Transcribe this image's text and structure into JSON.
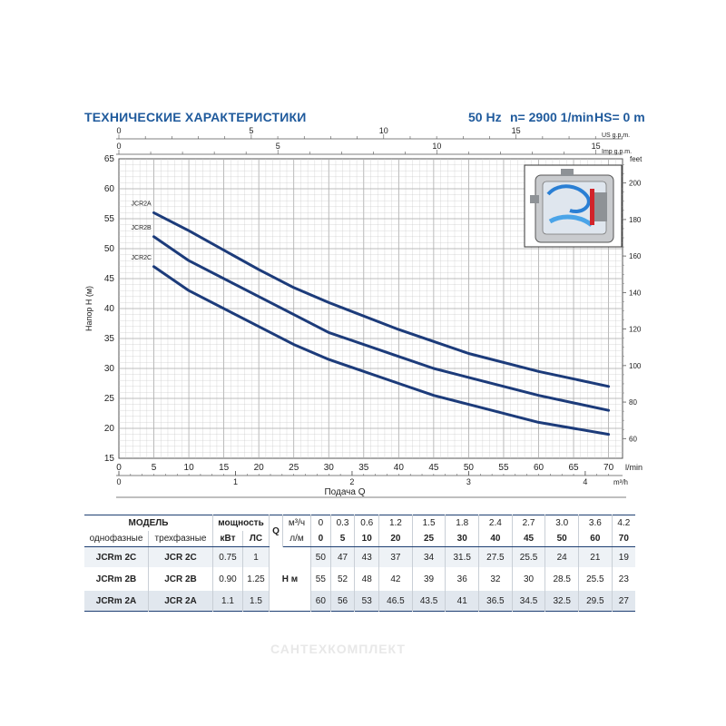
{
  "header": {
    "title": "ТЕХНИЧЕСКИЕ ХАРАКТЕРИСТИКИ",
    "freq": "50 Hz",
    "speed": "n= 2900  1/min",
    "hs": "HS= 0 m"
  },
  "chart_data": {
    "type": "line",
    "x": [
      0,
      5,
      10,
      20,
      25,
      30,
      40,
      45,
      50,
      60,
      70
    ],
    "x_unit": "l/min",
    "xlim": [
      0,
      72
    ],
    "ylim": [
      15,
      65
    ],
    "ylabel": "Напор H (м)",
    "xlabel": "Подача Q",
    "right_axis_label": "feet",
    "grid": true,
    "series": [
      {
        "name": "JCR2A",
        "points": [
          [
            5,
            56
          ],
          [
            10,
            53
          ],
          [
            20,
            46.5
          ],
          [
            25,
            43.5
          ],
          [
            30,
            41
          ],
          [
            40,
            36.5
          ],
          [
            45,
            34.5
          ],
          [
            50,
            32.5
          ],
          [
            60,
            29.5
          ],
          [
            70,
            27
          ]
        ]
      },
      {
        "name": "JCR2B",
        "points": [
          [
            5,
            52
          ],
          [
            10,
            48
          ],
          [
            20,
            42
          ],
          [
            25,
            39
          ],
          [
            30,
            36
          ],
          [
            40,
            32
          ],
          [
            45,
            30
          ],
          [
            50,
            28.5
          ],
          [
            60,
            25.5
          ],
          [
            70,
            23
          ]
        ]
      },
      {
        "name": "JCR2C",
        "points": [
          [
            5,
            47
          ],
          [
            10,
            43
          ],
          [
            20,
            37
          ],
          [
            25,
            34
          ],
          [
            30,
            31.5
          ],
          [
            40,
            27.5
          ],
          [
            45,
            25.5
          ],
          [
            50,
            24
          ],
          [
            60,
            21
          ],
          [
            70,
            19
          ]
        ]
      }
    ],
    "y_ticks": [
      "15",
      "20",
      "25",
      "30",
      "35",
      "40",
      "45",
      "50",
      "55",
      "60",
      "65"
    ],
    "x_ticks_lmin": [
      "0",
      "5",
      "10",
      "15",
      "20",
      "25",
      "30",
      "35",
      "40",
      "45",
      "50",
      "55",
      "60",
      "65",
      "70"
    ],
    "x_ticks_m3h": [
      "0",
      "1",
      "2",
      "3",
      "4"
    ],
    "feet_ticks": [
      "60",
      "80",
      "100",
      "120",
      "140",
      "160",
      "180",
      "200"
    ],
    "top_ticks_us": [
      "0",
      "5",
      "10",
      "15"
    ],
    "top_ticks_imp": [
      "0",
      "5",
      "10",
      "15"
    ],
    "top_unit_us": "US g.p.m.",
    "top_unit_imp": "Imp g.p.m.",
    "unit_lmin": "l/min",
    "unit_m3h": "m³/h",
    "colors": {
      "curve": "#1c3b7a",
      "grid": "#c8c8c8",
      "text": "#222222"
    }
  },
  "table": {
    "model_label": "МОДЕЛЬ",
    "power_label": "мощность",
    "q_label": "Q",
    "unit_m3h": "м³/ч",
    "unit_lm": "л/м",
    "single_phase": "однофазные",
    "three_phase": "трехфазные",
    "kw": "кВт",
    "hp": "ЛС",
    "h_label": "H  м",
    "q_m3h": [
      "0",
      "0.3",
      "0.6",
      "1.2",
      "1.5",
      "1.8",
      "2.4",
      "2.7",
      "3.0",
      "3.6",
      "4.2"
    ],
    "q_lm": [
      "0",
      "5",
      "10",
      "20",
      "25",
      "30",
      "40",
      "45",
      "50",
      "60",
      "70"
    ],
    "rows": [
      {
        "single": "JCRm 2C",
        "three": "JCR 2C",
        "kw": "0.75",
        "hp": "1",
        "h": [
          "50",
          "47",
          "43",
          "37",
          "34",
          "31.5",
          "27.5",
          "25.5",
          "24",
          "21",
          "19"
        ]
      },
      {
        "single": "JCRm 2B",
        "three": "JCR 2B",
        "kw": "0.90",
        "hp": "1.25",
        "h": [
          "55",
          "52",
          "48",
          "42",
          "39",
          "36",
          "32",
          "30",
          "28.5",
          "25.5",
          "23"
        ]
      },
      {
        "single": "JCRm 2A",
        "three": "JCR 2A",
        "kw": "1.1",
        "hp": "1.5",
        "h": [
          "60",
          "56",
          "53",
          "46.5",
          "43.5",
          "41",
          "36.5",
          "34.5",
          "32.5",
          "29.5",
          "27"
        ]
      }
    ]
  },
  "watermark": "САНТЕХКОМПЛЕКТ"
}
